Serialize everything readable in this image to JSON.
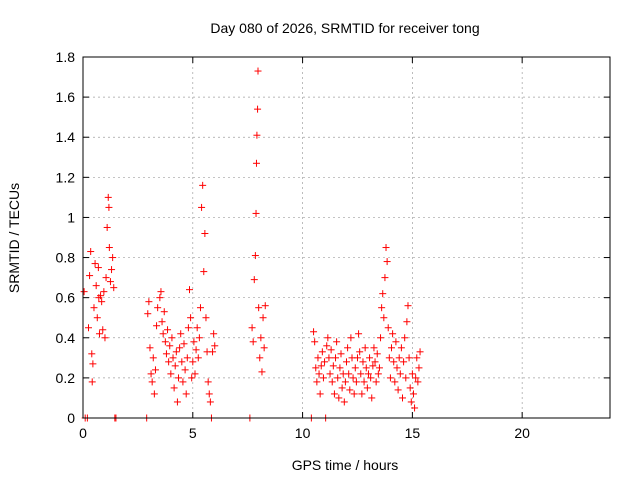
{
  "chart_data": {
    "type": "scatter",
    "title": "Day 080 of 2026, SRMTID for receiver tong",
    "xlabel": "GPS time / hours",
    "ylabel": "SRMTID / TECUs",
    "xlim": [
      0,
      24
    ],
    "ylim": [
      0,
      1.8
    ],
    "xticks": [
      0,
      5,
      10,
      15,
      20
    ],
    "xtick_labels": [
      "0",
      "5",
      "10",
      "15",
      "20"
    ],
    "yticks": [
      0,
      0.2,
      0.4,
      0.6,
      0.8,
      1.0,
      1.2,
      1.4,
      1.6,
      1.8
    ],
    "ytick_labels": [
      "0",
      "0.2",
      "0.4",
      "0.6",
      "0.8",
      "1",
      "1.2",
      "1.4",
      "1.6",
      "1.8"
    ],
    "grid": true,
    "marker": "plus",
    "color": "#ff0000",
    "series": [
      {
        "name": "SRMTID",
        "points": [
          [
            0.05,
            0.63
          ],
          [
            0.1,
            0.0
          ],
          [
            0.2,
            0.0
          ],
          [
            0.25,
            0.45
          ],
          [
            0.3,
            0.71
          ],
          [
            0.35,
            0.83
          ],
          [
            0.4,
            0.32
          ],
          [
            0.42,
            0.18
          ],
          [
            0.45,
            0.27
          ],
          [
            0.5,
            0.55
          ],
          [
            0.55,
            0.77
          ],
          [
            0.6,
            0.66
          ],
          [
            0.65,
            0.5
          ],
          [
            0.7,
            0.75
          ],
          [
            0.72,
            0.6
          ],
          [
            0.75,
            0.42
          ],
          [
            0.8,
            0.61
          ],
          [
            0.85,
            0.58
          ],
          [
            0.9,
            0.44
          ],
          [
            0.95,
            0.63
          ],
          [
            1.0,
            0.4
          ],
          [
            1.05,
            0.7
          ],
          [
            1.1,
            0.95
          ],
          [
            1.15,
            1.1
          ],
          [
            1.18,
            1.05
          ],
          [
            1.2,
            0.85
          ],
          [
            1.25,
            0.68
          ],
          [
            1.3,
            0.74
          ],
          [
            1.35,
            0.8
          ],
          [
            1.4,
            0.65
          ],
          [
            1.45,
            0.0
          ],
          [
            1.5,
            0.0
          ],
          [
            2.9,
            0.0
          ],
          [
            2.95,
            0.52
          ],
          [
            3.0,
            0.58
          ],
          [
            3.05,
            0.35
          ],
          [
            3.1,
            0.22
          ],
          [
            3.15,
            0.18
          ],
          [
            3.2,
            0.3
          ],
          [
            3.25,
            0.12
          ],
          [
            3.3,
            0.24
          ],
          [
            3.35,
            0.46
          ],
          [
            3.4,
            0.55
          ],
          [
            3.5,
            0.6
          ],
          [
            3.55,
            0.63
          ],
          [
            3.6,
            0.48
          ],
          [
            3.65,
            0.42
          ],
          [
            3.7,
            0.53
          ],
          [
            3.75,
            0.38
          ],
          [
            3.8,
            0.32
          ],
          [
            3.85,
            0.44
          ],
          [
            3.9,
            0.28
          ],
          [
            3.95,
            0.36
          ],
          [
            4.0,
            0.22
          ],
          [
            4.05,
            0.4
          ],
          [
            4.1,
            0.3
          ],
          [
            4.15,
            0.15
          ],
          [
            4.2,
            0.26
          ],
          [
            4.25,
            0.33
          ],
          [
            4.3,
            0.08
          ],
          [
            4.35,
            0.2
          ],
          [
            4.4,
            0.35
          ],
          [
            4.45,
            0.42
          ],
          [
            4.5,
            0.28
          ],
          [
            4.55,
            0.18
          ],
          [
            4.6,
            0.37
          ],
          [
            4.65,
            0.24
          ],
          [
            4.7,
            0.12
          ],
          [
            4.75,
            0.3
          ],
          [
            4.8,
            0.45
          ],
          [
            4.85,
            0.64
          ],
          [
            4.9,
            0.5
          ],
          [
            4.95,
            0.2
          ],
          [
            5.0,
            0.28
          ],
          [
            5.05,
            0.38
          ],
          [
            5.1,
            0.22
          ],
          [
            5.15,
            0.34
          ],
          [
            5.2,
            0.45
          ],
          [
            5.25,
            0.3
          ],
          [
            5.3,
            0.4
          ],
          [
            5.35,
            0.55
          ],
          [
            5.4,
            1.05
          ],
          [
            5.45,
            1.16
          ],
          [
            5.5,
            0.73
          ],
          [
            5.55,
            0.92
          ],
          [
            5.6,
            0.5
          ],
          [
            5.65,
            0.33
          ],
          [
            5.7,
            0.18
          ],
          [
            5.75,
            0.12
          ],
          [
            5.8,
            0.08
          ],
          [
            5.85,
            0.0
          ],
          [
            5.9,
            0.33
          ],
          [
            5.95,
            0.42
          ],
          [
            6.0,
            0.36
          ],
          [
            7.6,
            0.0
          ],
          [
            7.7,
            0.45
          ],
          [
            7.75,
            0.38
          ],
          [
            7.8,
            0.69
          ],
          [
            7.85,
            0.81
          ],
          [
            7.88,
            1.02
          ],
          [
            7.9,
            1.27
          ],
          [
            7.92,
            1.41
          ],
          [
            7.95,
            1.54
          ],
          [
            7.97,
            1.73
          ],
          [
            8.0,
            0.55
          ],
          [
            8.05,
            0.3
          ],
          [
            8.1,
            0.4
          ],
          [
            8.15,
            0.23
          ],
          [
            8.2,
            0.5
          ],
          [
            8.25,
            0.35
          ],
          [
            8.3,
            0.56
          ],
          [
            10.4,
            0.0
          ],
          [
            10.5,
            0.43
          ],
          [
            10.55,
            0.38
          ],
          [
            10.6,
            0.25
          ],
          [
            10.65,
            0.18
          ],
          [
            10.7,
            0.3
          ],
          [
            10.75,
            0.22
          ],
          [
            10.8,
            0.12
          ],
          [
            10.85,
            0.26
          ],
          [
            10.9,
            0.33
          ],
          [
            10.95,
            0.2
          ],
          [
            11.0,
            0.28
          ],
          [
            11.05,
            0.0
          ],
          [
            11.1,
            0.36
          ],
          [
            11.15,
            0.4
          ],
          [
            11.2,
            0.3
          ],
          [
            11.25,
            0.22
          ],
          [
            11.3,
            0.34
          ],
          [
            11.35,
            0.18
          ],
          [
            11.4,
            0.26
          ],
          [
            11.45,
            0.12
          ],
          [
            11.5,
            0.3
          ],
          [
            11.55,
            0.38
          ],
          [
            11.6,
            0.2
          ],
          [
            11.65,
            0.1
          ],
          [
            11.7,
            0.25
          ],
          [
            11.75,
            0.32
          ],
          [
            11.8,
            0.15
          ],
          [
            11.85,
            0.22
          ],
          [
            11.9,
            0.08
          ],
          [
            11.95,
            0.18
          ],
          [
            12.0,
            0.28
          ],
          [
            12.05,
            0.35
          ],
          [
            12.1,
            0.22
          ],
          [
            12.15,
            0.14
          ],
          [
            12.2,
            0.4
          ],
          [
            12.25,
            0.3
          ],
          [
            12.3,
            0.2
          ],
          [
            12.35,
            0.12
          ],
          [
            12.4,
            0.25
          ],
          [
            12.45,
            0.18
          ],
          [
            12.5,
            0.3
          ],
          [
            12.55,
            0.42
          ],
          [
            12.6,
            0.33
          ],
          [
            12.65,
            0.22
          ],
          [
            12.7,
            0.12
          ],
          [
            12.75,
            0.28
          ],
          [
            12.8,
            0.18
          ],
          [
            12.85,
            0.35
          ],
          [
            12.9,
            0.25
          ],
          [
            12.95,
            0.15
          ],
          [
            13.0,
            0.22
          ],
          [
            13.05,
            0.3
          ],
          [
            13.1,
            0.2
          ],
          [
            13.15,
            0.1
          ],
          [
            13.2,
            0.26
          ],
          [
            13.25,
            0.35
          ],
          [
            13.3,
            0.28
          ],
          [
            13.35,
            0.18
          ],
          [
            13.4,
            0.32
          ],
          [
            13.45,
            0.22
          ],
          [
            13.5,
            0.25
          ],
          [
            13.55,
            0.4
          ],
          [
            13.6,
            0.55
          ],
          [
            13.65,
            0.62
          ],
          [
            13.7,
            0.5
          ],
          [
            13.75,
            0.7
          ],
          [
            13.8,
            0.85
          ],
          [
            13.85,
            0.78
          ],
          [
            13.9,
            0.45
          ],
          [
            13.95,
            0.3
          ],
          [
            14.0,
            0.2
          ],
          [
            14.05,
            0.35
          ],
          [
            14.1,
            0.42
          ],
          [
            14.15,
            0.28
          ],
          [
            14.2,
            0.18
          ],
          [
            14.25,
            0.38
          ],
          [
            14.3,
            0.25
          ],
          [
            14.35,
            0.14
          ],
          [
            14.4,
            0.3
          ],
          [
            14.45,
            0.22
          ],
          [
            14.5,
            0.35
          ],
          [
            14.55,
            0.1
          ],
          [
            14.6,
            0.28
          ],
          [
            14.65,
            0.4
          ],
          [
            14.7,
            0.2
          ],
          [
            14.75,
            0.48
          ],
          [
            14.8,
            0.56
          ],
          [
            14.85,
            0.3
          ],
          [
            14.9,
            0.15
          ],
          [
            14.95,
            0.08
          ],
          [
            15.0,
            0.22
          ],
          [
            15.05,
            0.12
          ],
          [
            15.1,
            0.05
          ],
          [
            15.15,
            0.2
          ],
          [
            15.2,
            0.3
          ],
          [
            15.25,
            0.18
          ],
          [
            15.3,
            0.25
          ],
          [
            15.35,
            0.33
          ]
        ]
      }
    ]
  }
}
